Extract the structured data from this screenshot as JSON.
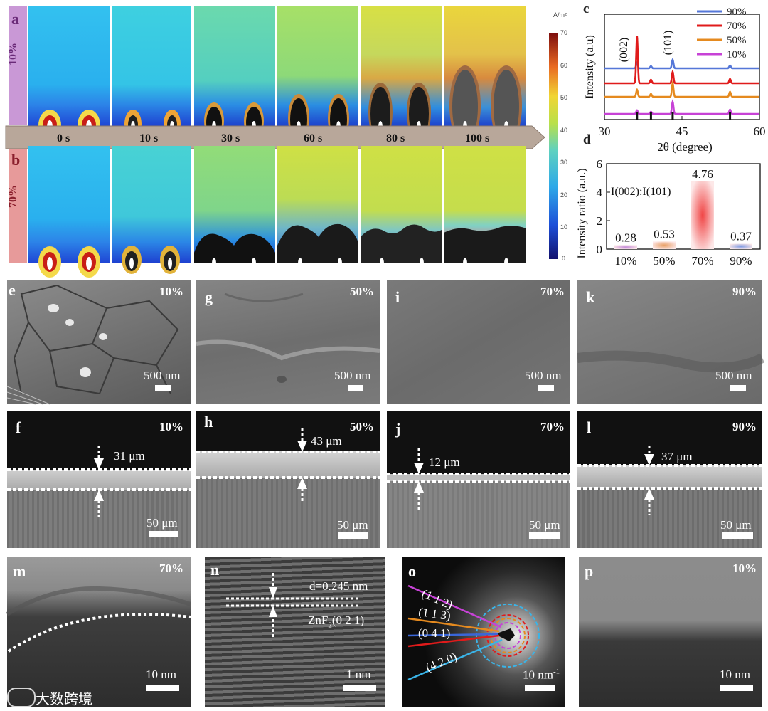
{
  "panels": {
    "a": "a",
    "b": "b",
    "c": "c",
    "d": "d",
    "e": "e",
    "f": "f",
    "g": "g",
    "h": "h",
    "i": "i",
    "j": "j",
    "k": "k",
    "l": "l",
    "m": "m",
    "n": "n",
    "o": "o",
    "p": "p"
  },
  "row_labels": {
    "a": "10%",
    "b": "70%"
  },
  "time_labels": [
    "0 s",
    "10 s",
    "30 s",
    "60 s",
    "80 s",
    "100 s"
  ],
  "colorbar": {
    "unit": "A/m²",
    "ticks": [
      "70",
      "60",
      "50",
      "40",
      "30",
      "20",
      "10",
      "0"
    ]
  },
  "chart_data": [
    {
      "type": "line",
      "panel": "c",
      "xlabel": "2θ (degree)",
      "ylabel": "Intensity (a.u)",
      "xlim": [
        30,
        60
      ],
      "xticks": [
        "30",
        "45",
        "60"
      ],
      "annotations": [
        "(002)",
        "(101)"
      ],
      "series": [
        {
          "name": "90%",
          "color": "#5577d8",
          "peaks": [
            [
              36.3,
              0.8
            ],
            [
              39.0,
              0.3
            ],
            [
              43.2,
              1.2
            ],
            [
              54.3,
              0.4
            ]
          ]
        },
        {
          "name": "70%",
          "color": "#e01b1b",
          "peaks": [
            [
              36.3,
              6.6
            ],
            [
              39.0,
              0.5
            ],
            [
              43.2,
              1.6
            ],
            [
              54.3,
              0.6
            ]
          ]
        },
        {
          "name": "50%",
          "color": "#e58a1f",
          "peaks": [
            [
              36.3,
              1.0
            ],
            [
              39.0,
              0.4
            ],
            [
              43.2,
              1.9
            ],
            [
              54.3,
              0.7
            ]
          ]
        },
        {
          "name": "10%",
          "color": "#c742d6",
          "peaks": [
            [
              36.3,
              0.5
            ],
            [
              39.0,
              0.3
            ],
            [
              43.2,
              1.7
            ],
            [
              54.3,
              0.6
            ]
          ]
        }
      ]
    },
    {
      "type": "bar",
      "panel": "d",
      "ylabel": "Intensity ratio (a.u.)",
      "annotation": "I(002):I(101)",
      "ylim": [
        0,
        6
      ],
      "yticks": [
        "0",
        "2",
        "4",
        "6"
      ],
      "categories": [
        "10%",
        "50%",
        "70%",
        "90%"
      ],
      "values": [
        0.28,
        0.53,
        4.76,
        0.37
      ],
      "value_labels": [
        "0.28",
        "0.53",
        "4.76",
        "0.37"
      ],
      "colors": [
        "#c38ad9",
        "#e8a066",
        "#f04545",
        "#7f9be4"
      ]
    }
  ],
  "sem_top": [
    {
      "panel": "e",
      "pct": "10%",
      "scale": "500 nm"
    },
    {
      "panel": "g",
      "pct": "50%",
      "scale": "500 nm"
    },
    {
      "panel": "i",
      "pct": "70%",
      "scale": "500 nm"
    },
    {
      "panel": "k",
      "pct": "90%",
      "scale": "500 nm"
    }
  ],
  "sem_cross": [
    {
      "panel": "f",
      "pct": "10%",
      "thickness": "31 μm",
      "scale": "50 μm"
    },
    {
      "panel": "h",
      "pct": "50%",
      "thickness": "43 μm",
      "scale": "50 μm"
    },
    {
      "panel": "j",
      "pct": "70%",
      "thickness": "12 μm",
      "scale": "50 μm"
    },
    {
      "panel": "l",
      "pct": "90%",
      "thickness": "37 μm",
      "scale": "50 μm"
    }
  ],
  "tem": {
    "m": {
      "pct": "70%",
      "scale": "10 nm"
    },
    "n": {
      "d_spacing": "d=0.245 nm",
      "plane_main": "ZnF",
      "plane_sub": "2",
      "plane_rest": "(0 2 1)",
      "scale": "1 nm"
    },
    "o": {
      "rings": [
        "(1 1 2)",
        "(1 1 3)",
        "(0 4 1)",
        "(4 2 0)"
      ],
      "scale": "10 nm",
      "scale_sup": "-1"
    },
    "p": {
      "pct": "10%",
      "scale": "10 nm"
    }
  },
  "watermark": "大数跨境"
}
